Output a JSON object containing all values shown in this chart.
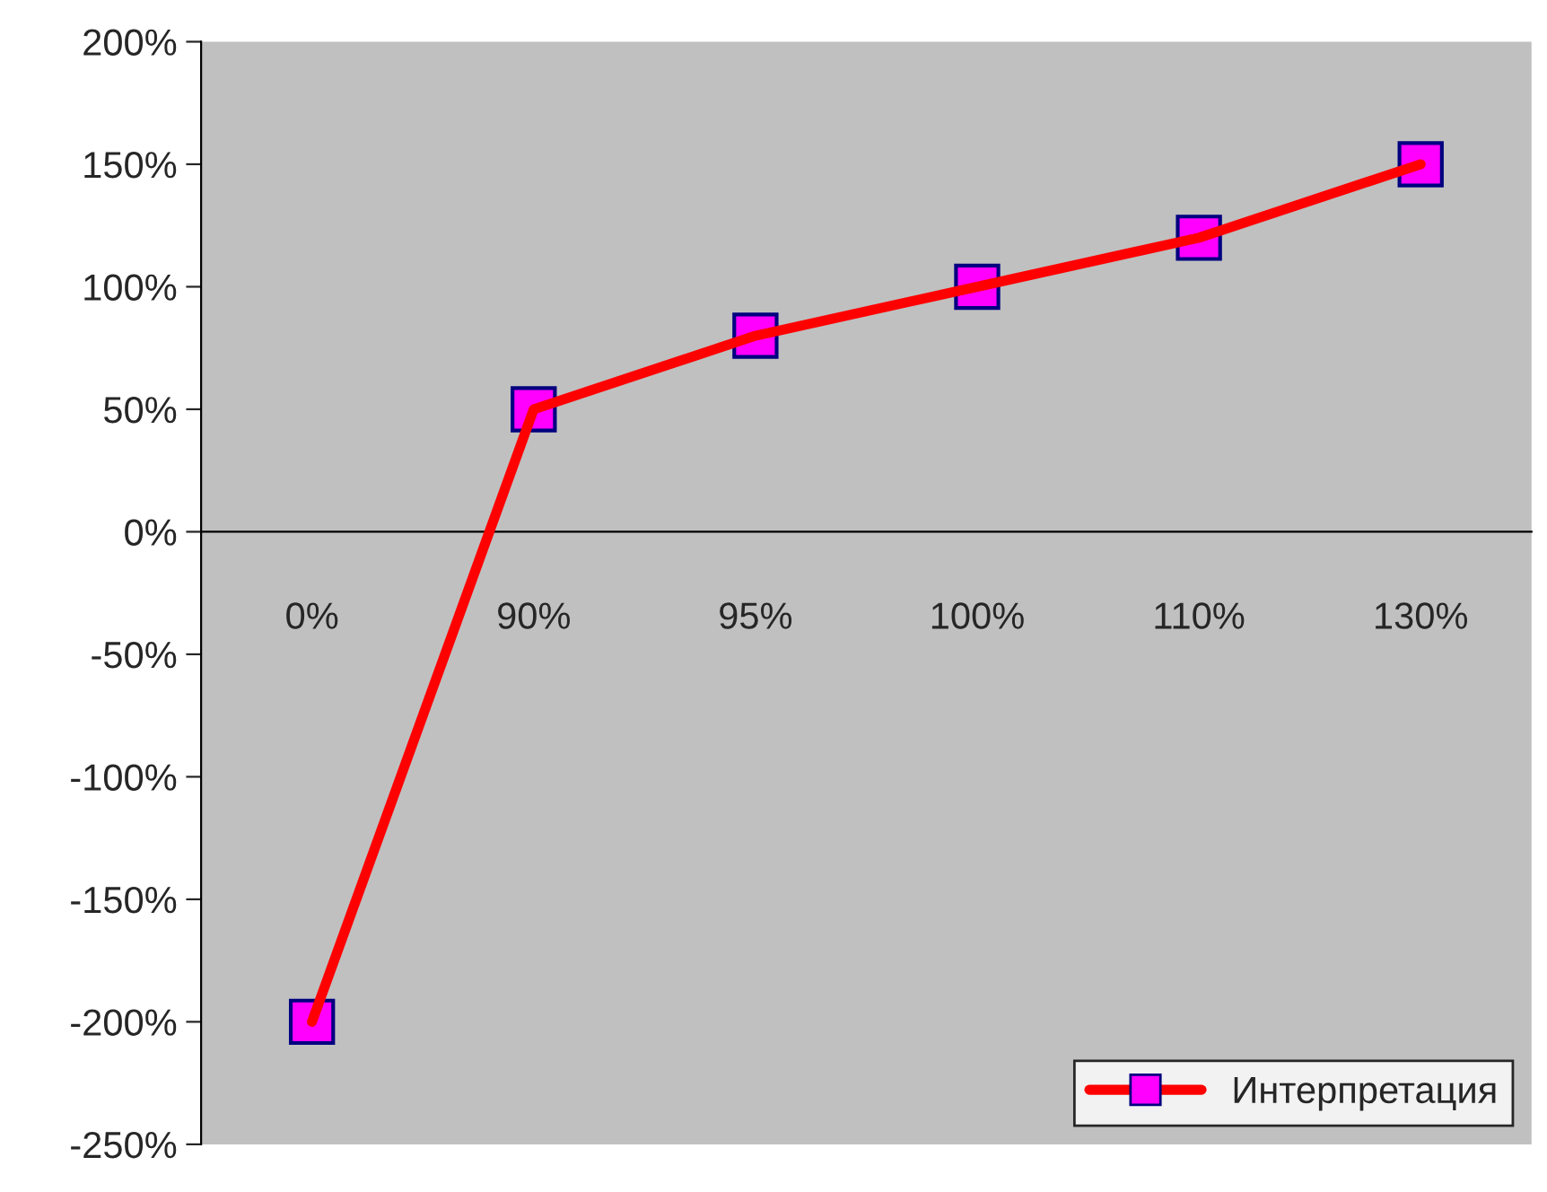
{
  "chart_data": {
    "type": "line",
    "categories": [
      "0%",
      "90%",
      "95%",
      "100%",
      "110%",
      "130%"
    ],
    "series": [
      {
        "name": "Интерпретация",
        "color": "#ff0000",
        "colors": [
          "#ff00ff",
          "#ff00ff",
          "#ff00ff",
          "#ff00ff",
          "#ff00ff",
          "#ff00ff"
        ],
        "values": [
          -200,
          50,
          80,
          100,
          120,
          150
        ]
      }
    ],
    "ylim": [
      -250,
      200
    ],
    "yticks": [
      {
        "value": -250,
        "label": "-250%"
      },
      {
        "value": -200,
        "label": "-200%"
      },
      {
        "value": -150,
        "label": "-150%"
      },
      {
        "value": -100,
        "label": "-100%"
      },
      {
        "value": -50,
        "label": "-50%"
      },
      {
        "value": 0,
        "label": "0%"
      },
      {
        "value": 50,
        "label": "50%"
      },
      {
        "value": 100,
        "label": "100%"
      },
      {
        "value": 150,
        "label": "150%"
      },
      {
        "value": 200,
        "label": "200%"
      }
    ],
    "grid": false,
    "legend": "bottom right",
    "marker": "square",
    "line_style": "solid"
  }
}
